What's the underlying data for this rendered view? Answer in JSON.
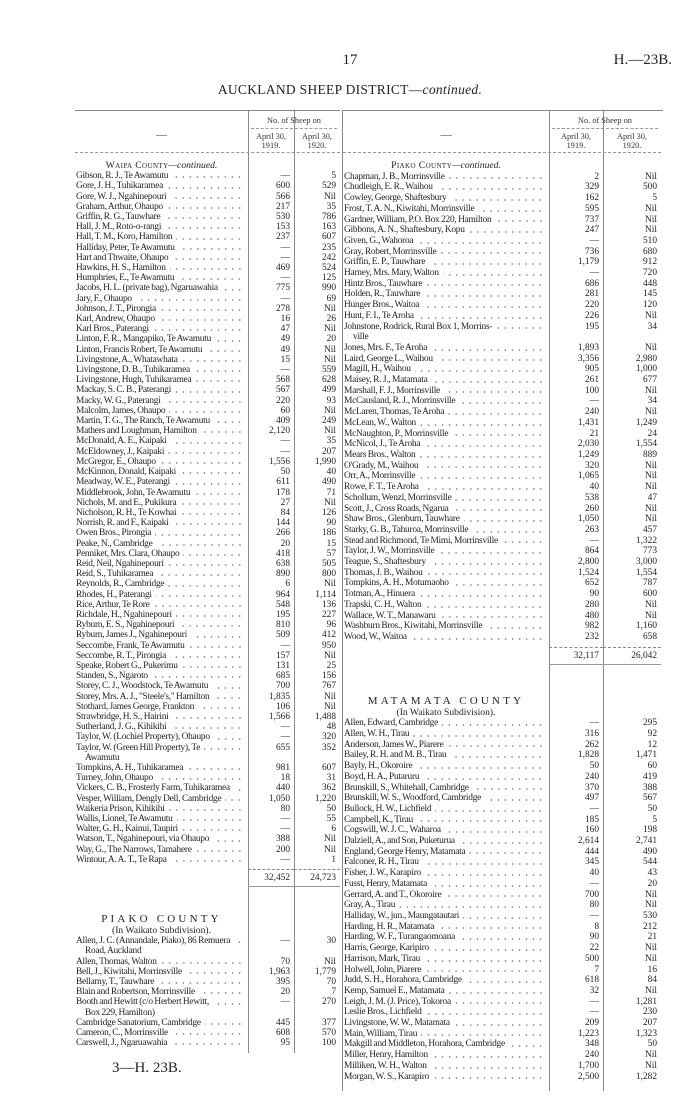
{
  "page_number": "17",
  "reference_top": "H.—23B.",
  "title_main": "AUCKLAND SHEEP DISTRICT—",
  "title_cont": "continued.",
  "table_header": {
    "name_col": "—",
    "group": "No. of Sheep on",
    "col1": "April 30, 1919.",
    "col2": "April 30, 1920."
  },
  "left": [
    {
      "type": "heading",
      "main": "Waipa County",
      "cont": "—continued."
    },
    {
      "type": "row",
      "name": "Gibson, R. J., Te Awamutu",
      "v1919": "—",
      "v1920": "5"
    },
    {
      "type": "row",
      "name": "Gore, J. H., Tuhikaramea",
      "v1919": "600",
      "v1920": "529"
    },
    {
      "type": "row",
      "name": "Gore, W. J., Ngahinepouri",
      "v1919": "566",
      "v1920": "Nil"
    },
    {
      "type": "row",
      "name": "Graham, Arthur, Ohaupo",
      "v1919": "217",
      "v1920": "35"
    },
    {
      "type": "row",
      "name": "Griffin, R. G., Tauwhare",
      "v1919": "530",
      "v1920": "786"
    },
    {
      "type": "row",
      "name": "Hall, J. M., Roto-o-rangi",
      "v1919": "153",
      "v1920": "163"
    },
    {
      "type": "row",
      "name": "Hall, T. M., Koro, Hamilton",
      "v1919": "237",
      "v1920": "607"
    },
    {
      "type": "row",
      "name": "Halliday, Peter, Te Awamutu",
      "v1919": "—",
      "v1920": "235"
    },
    {
      "type": "row",
      "name": "Hart and Thwaite, Ohaupo",
      "v1919": "—",
      "v1920": "242"
    },
    {
      "type": "row",
      "name": "Hawkins, H. S., Hamilton",
      "v1919": "469",
      "v1920": "524"
    },
    {
      "type": "row",
      "name": "Humphries, E., Te Awamutu",
      "v1919": "—",
      "v1920": "125"
    },
    {
      "type": "row",
      "name": "Jacobs, H. L. (private bag), Ngaruawahia",
      "v1919": "775",
      "v1920": "990"
    },
    {
      "type": "row",
      "name": "Jary, F., Ohaupo",
      "v1919": "—",
      "v1920": "69"
    },
    {
      "type": "row",
      "name": "Johnson, J. T., Pirongia",
      "v1919": "278",
      "v1920": "Nil"
    },
    {
      "type": "row",
      "name": "Karl, Andrew, Ohaupo",
      "v1919": "16",
      "v1920": "26"
    },
    {
      "type": "row",
      "name": "Karl Bros., Paterangi",
      "v1919": "47",
      "v1920": "Nil"
    },
    {
      "type": "row",
      "name": "Linton, F. R., Mangapiko, Te Awamutu",
      "v1919": "49",
      "v1920": "20"
    },
    {
      "type": "row",
      "name": "Linton, Francis Robert, Te Awamutu",
      "v1919": "49",
      "v1920": "Nil"
    },
    {
      "type": "row",
      "name": "Livingstone, A., Whatawhata",
      "v1919": "15",
      "v1920": "Nil"
    },
    {
      "type": "row",
      "name": "Livingstone, D. B., Tuhikaramea",
      "v1919": "—",
      "v1920": "559"
    },
    {
      "type": "row",
      "name": "Livingstone, Hugh, Tuhikaramea",
      "v1919": "568",
      "v1920": "628"
    },
    {
      "type": "row",
      "name": "Mackay, S. C. B., Paterangi",
      "v1919": "567",
      "v1920": "499"
    },
    {
      "type": "row",
      "name": "Macky, W. G., Paterangi",
      "v1919": "220",
      "v1920": "93"
    },
    {
      "type": "row",
      "name": "Malcolm, James, Ohaupo",
      "v1919": "60",
      "v1920": "Nil"
    },
    {
      "type": "row",
      "name": "Martin, T. G., The Ranch, Te Awamutu",
      "v1919": "409",
      "v1920": "249"
    },
    {
      "type": "row",
      "name": "Mathers and Loughman, Hamilton",
      "v1919": "2,120",
      "v1920": "Nil"
    },
    {
      "type": "row",
      "name": "McDonald, A. E., Kaipaki",
      "v1919": "—",
      "v1920": "35"
    },
    {
      "type": "row",
      "name": "McEldowney, J., Kaipaki",
      "v1919": "—",
      "v1920": "207"
    },
    {
      "type": "row",
      "name": "McGregor, E., Ohaupo",
      "v1919": "1,556",
      "v1920": "1,990"
    },
    {
      "type": "row",
      "name": "McKinnon, Donald, Kaipaki",
      "v1919": "50",
      "v1920": "40"
    },
    {
      "type": "row",
      "name": "Meadway, W. E., Paterangi",
      "v1919": "611",
      "v1920": "490"
    },
    {
      "type": "row",
      "name": "Middlebrook, John, Te Awamutu",
      "v1919": "178",
      "v1920": "71"
    },
    {
      "type": "row",
      "name": "Nichols, M. and E., Pukikura",
      "v1919": "27",
      "v1920": "Nil"
    },
    {
      "type": "row",
      "name": "Nicholson, R. H., Te Kowhai",
      "v1919": "84",
      "v1920": "126"
    },
    {
      "type": "row",
      "name": "Norrish, R. and F., Kaipaki",
      "v1919": "144",
      "v1920": "90"
    },
    {
      "type": "row",
      "name": "Owen Bros., Pirongia",
      "v1919": "266",
      "v1920": "186"
    },
    {
      "type": "row",
      "name": "Peake, N., Cambridge",
      "v1919": "20",
      "v1920": "15"
    },
    {
      "type": "row",
      "name": "Penniket, Mrs. Clara, Ohaupo",
      "v1919": "418",
      "v1920": "57"
    },
    {
      "type": "row",
      "name": "Reid, Neil, Ngahinepouri",
      "v1919": "638",
      "v1920": "505"
    },
    {
      "type": "row",
      "name": "Reid, S., Tuhikaramea",
      "v1919": "890",
      "v1920": "800"
    },
    {
      "type": "row",
      "name": "Reynolds, R., Cambridge",
      "v1919": "6",
      "v1920": "Nil"
    },
    {
      "type": "row",
      "name": "Rhodes, H., Paterangi",
      "v1919": "964",
      "v1920": "1,114"
    },
    {
      "type": "row",
      "name": "Rice, Arthur, Te Rore",
      "v1919": "548",
      "v1920": "136"
    },
    {
      "type": "row",
      "name": "Richdale, H., Ngahinepouri",
      "v1919": "195",
      "v1920": "227"
    },
    {
      "type": "row",
      "name": "Ryburn, E. S., Ngahinepouri",
      "v1919": "810",
      "v1920": "96"
    },
    {
      "type": "row",
      "name": "Ryburn, James J., Ngahinepouri",
      "v1919": "509",
      "v1920": "412"
    },
    {
      "type": "row",
      "name": "Seccombe, Frank, Te Awamutu",
      "v1919": "—",
      "v1920": "950"
    },
    {
      "type": "row",
      "name": "Seccombe, R. T., Pirongia",
      "v1919": "157",
      "v1920": "Nil"
    },
    {
      "type": "row",
      "name": "Speake, Robert G., Pukerimu",
      "v1919": "131",
      "v1920": "25"
    },
    {
      "type": "row",
      "name": "Standen, S., Ngaroto",
      "v1919": "685",
      "v1920": "156"
    },
    {
      "type": "row",
      "name": "Storey, C. J., Woodstock, Te Awamutu",
      "v1919": "700",
      "v1920": "767"
    },
    {
      "type": "row",
      "name": "Storey, Mrs. A. J., \"Steele's,\" Hamilton",
      "v1919": "1,835",
      "v1920": "Nil"
    },
    {
      "type": "row",
      "name": "Stothard, James George, Frankton",
      "v1919": "106",
      "v1920": "Nil"
    },
    {
      "type": "row",
      "name": "Strawbridge, H. S., Hairini",
      "v1919": "1,566",
      "v1920": "1,488"
    },
    {
      "type": "row",
      "name": "Sutherland, J. G., Kihikihi",
      "v1919": "—",
      "v1920": "48"
    },
    {
      "type": "row",
      "name": "Taylor, W. (Lochiel Property), Ohaupo",
      "v1919": "—",
      "v1920": "320"
    },
    {
      "type": "row",
      "name": "Taylor, W. (Green Hill Property), Te",
      "name_cont": "Awamutu",
      "v1919": "655",
      "v1920": "352"
    },
    {
      "type": "row",
      "name": "Tompkins, A. H., Tuhikaramea",
      "v1919": "981",
      "v1920": "607"
    },
    {
      "type": "row",
      "name": "Turney, John, Ohaupo",
      "v1919": "18",
      "v1920": "31"
    },
    {
      "type": "row",
      "name": "Vickers, C. B., Frosterly Farm, Tuhikaramea",
      "v1919": "440",
      "v1920": "362"
    },
    {
      "type": "row",
      "name": "Vesper, William, Dengly Dell, Cambridge",
      "v1919": "1,050",
      "v1920": "1,220"
    },
    {
      "type": "row",
      "name": "Waikeria Prison, Kihikihi",
      "v1919": "80",
      "v1920": "50"
    },
    {
      "type": "row",
      "name": "Wallis, Lionel, Te Awamutu",
      "v1919": "—",
      "v1920": "55"
    },
    {
      "type": "row",
      "name": "Walter, G. H., Kainui, Taupiri",
      "v1919": "—",
      "v1920": "6"
    },
    {
      "type": "row",
      "name": "Watson, T., Ngahinepouri, via Ohaupo",
      "v1919": "388",
      "v1920": "Nil"
    },
    {
      "type": "row",
      "name": "Way, G., The Narrows, Tamahere",
      "v1919": "200",
      "v1920": "Nil"
    },
    {
      "type": "row",
      "name": "Wintour, A. A. T., Te Rapa",
      "v1919": "—",
      "v1920": "1"
    },
    {
      "type": "total",
      "v1919": "32,452",
      "v1920": "24,723"
    },
    {
      "type": "bighead",
      "text": "PIAKO COUNTY"
    },
    {
      "type": "subhead",
      "text": "(In Waikato Subdivision)."
    },
    {
      "type": "row",
      "name": "Allen, J. C. (Annandale, Piako), 86 Remuera",
      "name_cont": "Road, Auckland",
      "v1919": "—",
      "v1920": "30"
    },
    {
      "type": "row",
      "name": "Allen, Thomas, Walton",
      "v1919": "70",
      "v1920": "Nil"
    },
    {
      "type": "row",
      "name": "Bell, J., Kiwitahi, Morrinsville",
      "v1919": "1,963",
      "v1920": "1,779"
    },
    {
      "type": "row",
      "name": "Bellamy, T., Tauwhare",
      "v1919": "395",
      "v1920": "70"
    },
    {
      "type": "row",
      "name": "Blain and Robertson, Morrinsville",
      "v1919": "20",
      "v1920": "7"
    },
    {
      "type": "row",
      "name": "Booth and Hewitt (c/o Herbert Hewitt,",
      "name_cont": "Box 229, Hamilton)",
      "v1919": "—",
      "v1920": "270"
    },
    {
      "type": "row",
      "name": "Cambridge Sanatorium, Cambridge",
      "v1919": "445",
      "v1920": "377"
    },
    {
      "type": "row",
      "name": "Cameron, C., Morrinsville",
      "v1919": "608",
      "v1920": "570"
    },
    {
      "type": "row",
      "name": "Carswell, J., Ngaruawahia",
      "v1919": "95",
      "v1920": "100"
    }
  ],
  "right": [
    {
      "type": "heading",
      "main": "Piako County",
      "cont": "—continued."
    },
    {
      "type": "row",
      "name": "Chapman, J. B., Morrinsville",
      "v1919": "2",
      "v1920": "Nil"
    },
    {
      "type": "row",
      "name": "Chudleigh, E. R., Waihou",
      "v1919": "329",
      "v1920": "500"
    },
    {
      "type": "row",
      "name": "Cowley, George, Shaftesbury",
      "v1919": "162",
      "v1920": "5"
    },
    {
      "type": "row",
      "name": "Frost, T. A. N., Kiwitahi, Morrinsville",
      "v1919": "595",
      "v1920": "Nil"
    },
    {
      "type": "row",
      "name": "Gardner, William, P.O. Box 220, Hamilton",
      "v1919": "737",
      "v1920": "Nil"
    },
    {
      "type": "row",
      "name": "Gibbons, A. N., Shaftesbury, Kopu",
      "v1919": "247",
      "v1920": "Nil"
    },
    {
      "type": "row",
      "name": "Given, G., Wahoroa",
      "v1919": "—",
      "v1920": "510"
    },
    {
      "type": "row",
      "name": "Gray, Robert, Morrinsville",
      "v1919": "736",
      "v1920": "680"
    },
    {
      "type": "row",
      "name": "Griffin, E. P., Tauwhare",
      "v1919": "1,179",
      "v1920": "912"
    },
    {
      "type": "row",
      "name": "Harney, Mrs. Mary, Walton",
      "v1919": "—",
      "v1920": "720"
    },
    {
      "type": "row",
      "name": "Hintz Bros., Tauwhare",
      "v1919": "686",
      "v1920": "448"
    },
    {
      "type": "row",
      "name": "Holden, R., Tauwhare",
      "v1919": "281",
      "v1920": "145"
    },
    {
      "type": "row",
      "name": "Hunger Bros., Waitoa",
      "v1919": "220",
      "v1920": "120"
    },
    {
      "type": "row",
      "name": "Hunt, F. I., Te Aroha",
      "v1919": "226",
      "v1920": "Nil"
    },
    {
      "type": "row",
      "name": "Johnstone, Rodrick, Rural Box 1, Morrins-",
      "name_cont": "ville",
      "v1919": "195",
      "v1920": "34"
    },
    {
      "type": "row",
      "name": "Jones, Mrs. F., Te Aroha",
      "v1919": "1,893",
      "v1920": "Nil"
    },
    {
      "type": "row",
      "name": "Laird, George L., Waihou",
      "v1919": "3,356",
      "v1920": "2,980"
    },
    {
      "type": "row",
      "name": "Magill, H., Waihou",
      "v1919": "905",
      "v1920": "1,000"
    },
    {
      "type": "row",
      "name": "Maisey, R. J., Matamata",
      "v1919": "261",
      "v1920": "677"
    },
    {
      "type": "row",
      "name": "Marshall, F. J., Morrinsville",
      "v1919": "100",
      "v1920": "Nil"
    },
    {
      "type": "row",
      "name": "McCausland, R. J., Morrinsville",
      "v1919": "—",
      "v1920": "34"
    },
    {
      "type": "row",
      "name": "McLaren, Thomas, Te Aroha",
      "v1919": "240",
      "v1920": "Nil"
    },
    {
      "type": "row",
      "name": "McLean, W., Walton",
      "v1919": "1,431",
      "v1920": "1,249"
    },
    {
      "type": "row",
      "name": "McNaughton, P., Morrinsville",
      "v1919": "21",
      "v1920": "24"
    },
    {
      "type": "row",
      "name": "McNicol, J., Te Aroha",
      "v1919": "2,030",
      "v1920": "1,554"
    },
    {
      "type": "row",
      "name": "Mears Bros., Walton",
      "v1919": "1,249",
      "v1920": "889"
    },
    {
      "type": "row",
      "name": "O'Grady, M., Waihou",
      "v1919": "320",
      "v1920": "Nil"
    },
    {
      "type": "row",
      "name": "Orr, A., Morrinsville",
      "v1919": "1,065",
      "v1920": "Nil"
    },
    {
      "type": "row",
      "name": "Rowe, F. T., Te Aroha",
      "v1919": "40",
      "v1920": "Nil"
    },
    {
      "type": "row",
      "name": "Schollum, Wenzl, Morrinsville",
      "v1919": "538",
      "v1920": "47"
    },
    {
      "type": "row",
      "name": "Scott, J., Cross Roads, Ngarua",
      "v1919": "260",
      "v1920": "Nil"
    },
    {
      "type": "row",
      "name": "Shaw Bros., Glenburn, Tauwhare",
      "v1919": "1,050",
      "v1920": "Nil"
    },
    {
      "type": "row",
      "name": "Starky, G. B., Tahuroa, Morrinsville",
      "v1919": "263",
      "v1920": "457"
    },
    {
      "type": "row",
      "name": "Stead and Richmond, Te Mimi, Morrinsville",
      "v1919": "—",
      "v1920": "1,322"
    },
    {
      "type": "row",
      "name": "Taylor, J. W., Morrinsville",
      "v1919": "864",
      "v1920": "773"
    },
    {
      "type": "row",
      "name": "Teague, S., Shaftesbury",
      "v1919": "2,800",
      "v1920": "3,000"
    },
    {
      "type": "row",
      "name": "Thomas, J. B., Waihou",
      "v1919": "1,524",
      "v1920": "1,554"
    },
    {
      "type": "row",
      "name": "Tompkins, A. H., Motumaoho",
      "v1919": "652",
      "v1920": "787"
    },
    {
      "type": "row",
      "name": "Totman, A., Hinuera",
      "v1919": "90",
      "v1920": "600"
    },
    {
      "type": "row",
      "name": "Trapski, C. H., Walton",
      "v1919": "280",
      "v1920": "Nil"
    },
    {
      "type": "row",
      "name": "Wallace, W. T., Manawaru",
      "v1919": "480",
      "v1920": "Nil"
    },
    {
      "type": "row",
      "name": "Washburn Bros., Kiwitahi, Morrinsville",
      "v1919": "982",
      "v1920": "1,160"
    },
    {
      "type": "row",
      "name": "Wood, W., Waitoa",
      "v1919": "232",
      "v1920": "658"
    },
    {
      "type": "total",
      "v1919": "32,117",
      "v1920": "26,042"
    },
    {
      "type": "bighead",
      "text": "MATAMATA COUNTY"
    },
    {
      "type": "subhead",
      "text": "(In Waikato Subdivision)."
    },
    {
      "type": "row",
      "name": "Allen, Edward, Cambridge",
      "v1919": "—",
      "v1920": "295"
    },
    {
      "type": "row",
      "name": "Allen, W. H., Tirau",
      "v1919": "316",
      "v1920": "92"
    },
    {
      "type": "row",
      "name": "Anderson, James W., Piarere",
      "v1919": "262",
      "v1920": "12"
    },
    {
      "type": "row",
      "name": "Bailey, R. H. and M. B., Tirau",
      "v1919": "1,828",
      "v1920": "1,471"
    },
    {
      "type": "row",
      "name": "Bayly, H., Okoroire",
      "v1919": "50",
      "v1920": "60"
    },
    {
      "type": "row",
      "name": "Boyd, H. A., Putaruru",
      "v1919": "240",
      "v1920": "419"
    },
    {
      "type": "row",
      "name": "Brunskill, S., Whitehall, Cambridge",
      "v1919": "370",
      "v1920": "388"
    },
    {
      "type": "row",
      "name": "Brunskill, W. S., Woodford, Cambridge",
      "v1919": "497",
      "v1920": "567"
    },
    {
      "type": "row",
      "name": "Bullock, H. W., Lichfield",
      "v1919": "—",
      "v1920": "50"
    },
    {
      "type": "row",
      "name": "Campbell, K., Tirau",
      "v1919": "185",
      "v1920": "5"
    },
    {
      "type": "row",
      "name": "Cogswill, W. J. C., Waharoa",
      "v1919": "160",
      "v1920": "198"
    },
    {
      "type": "row",
      "name": "Dalziell, A., and Son, Puketurua",
      "v1919": "2,614",
      "v1920": "2,741"
    },
    {
      "type": "row",
      "name": "England, George Henry, Matamata",
      "v1919": "444",
      "v1920": "490"
    },
    {
      "type": "row",
      "name": "Falconer, R. H., Tirau",
      "v1919": "345",
      "v1920": "544"
    },
    {
      "type": "row",
      "name": "Fisher, J. W., Karapiro",
      "v1919": "40",
      "v1920": "43"
    },
    {
      "type": "row",
      "name": "Fusst, Henry, Matamata",
      "v1919": "—",
      "v1920": "20"
    },
    {
      "type": "row",
      "name": "Gerrard, A. and T., Okoroire",
      "v1919": "700",
      "v1920": "Nil"
    },
    {
      "type": "row",
      "name": "Gray, A., Tirau",
      "v1919": "80",
      "v1920": "Nil"
    },
    {
      "type": "row",
      "name": "Halliday, W., jun., Maungatautari",
      "v1919": "—",
      "v1920": "530"
    },
    {
      "type": "row",
      "name": "Harding, H. R., Matamata",
      "v1919": "8",
      "v1920": "212"
    },
    {
      "type": "row",
      "name": "Harding, W. F., Turangaomoana",
      "v1919": "90",
      "v1920": "21"
    },
    {
      "type": "row",
      "name": "Harris, George, Karipiro",
      "v1919": "22",
      "v1920": "Nil"
    },
    {
      "type": "row",
      "name": "Harrison, Mark, Tirau",
      "v1919": "500",
      "v1920": "Nil"
    },
    {
      "type": "row",
      "name": "Holwell, John, Piarere",
      "v1919": "7",
      "v1920": "16"
    },
    {
      "type": "row",
      "name": "Judd, S. H., Horahora, Cambridge",
      "v1919": "618",
      "v1920": "84"
    },
    {
      "type": "row",
      "name": "Kemp, Samuel E., Matamata",
      "v1919": "32",
      "v1920": "Nil"
    },
    {
      "type": "row",
      "name": "Leigh, J. M. (J. Price), Tokoroa",
      "v1919": "—",
      "v1920": "1,281"
    },
    {
      "type": "row",
      "name": "Leslie Bros., Lichfield",
      "v1919": "—",
      "v1920": "230"
    },
    {
      "type": "row",
      "name": "Livingstone, W. W., Matamata",
      "v1919": "209",
      "v1920": "207"
    },
    {
      "type": "row",
      "name": "Main, William, Tirau",
      "v1919": "1,223",
      "v1920": "1,323"
    },
    {
      "type": "row",
      "name": "Makgill and Middleton, Horahora, Cambridge",
      "v1919": "348",
      "v1920": "50"
    },
    {
      "type": "row",
      "name": "Miller, Henry, Hamilton",
      "v1919": "240",
      "v1920": "Nil"
    },
    {
      "type": "row",
      "name": "Milliken, W. H., Walton",
      "v1919": "1,700",
      "v1920": "Nil"
    },
    {
      "type": "row",
      "name": "Morgan, W. S., Karapiro",
      "v1919": "2,500",
      "v1920": "1,282"
    }
  ],
  "footer_ref": "3—H. 23B."
}
